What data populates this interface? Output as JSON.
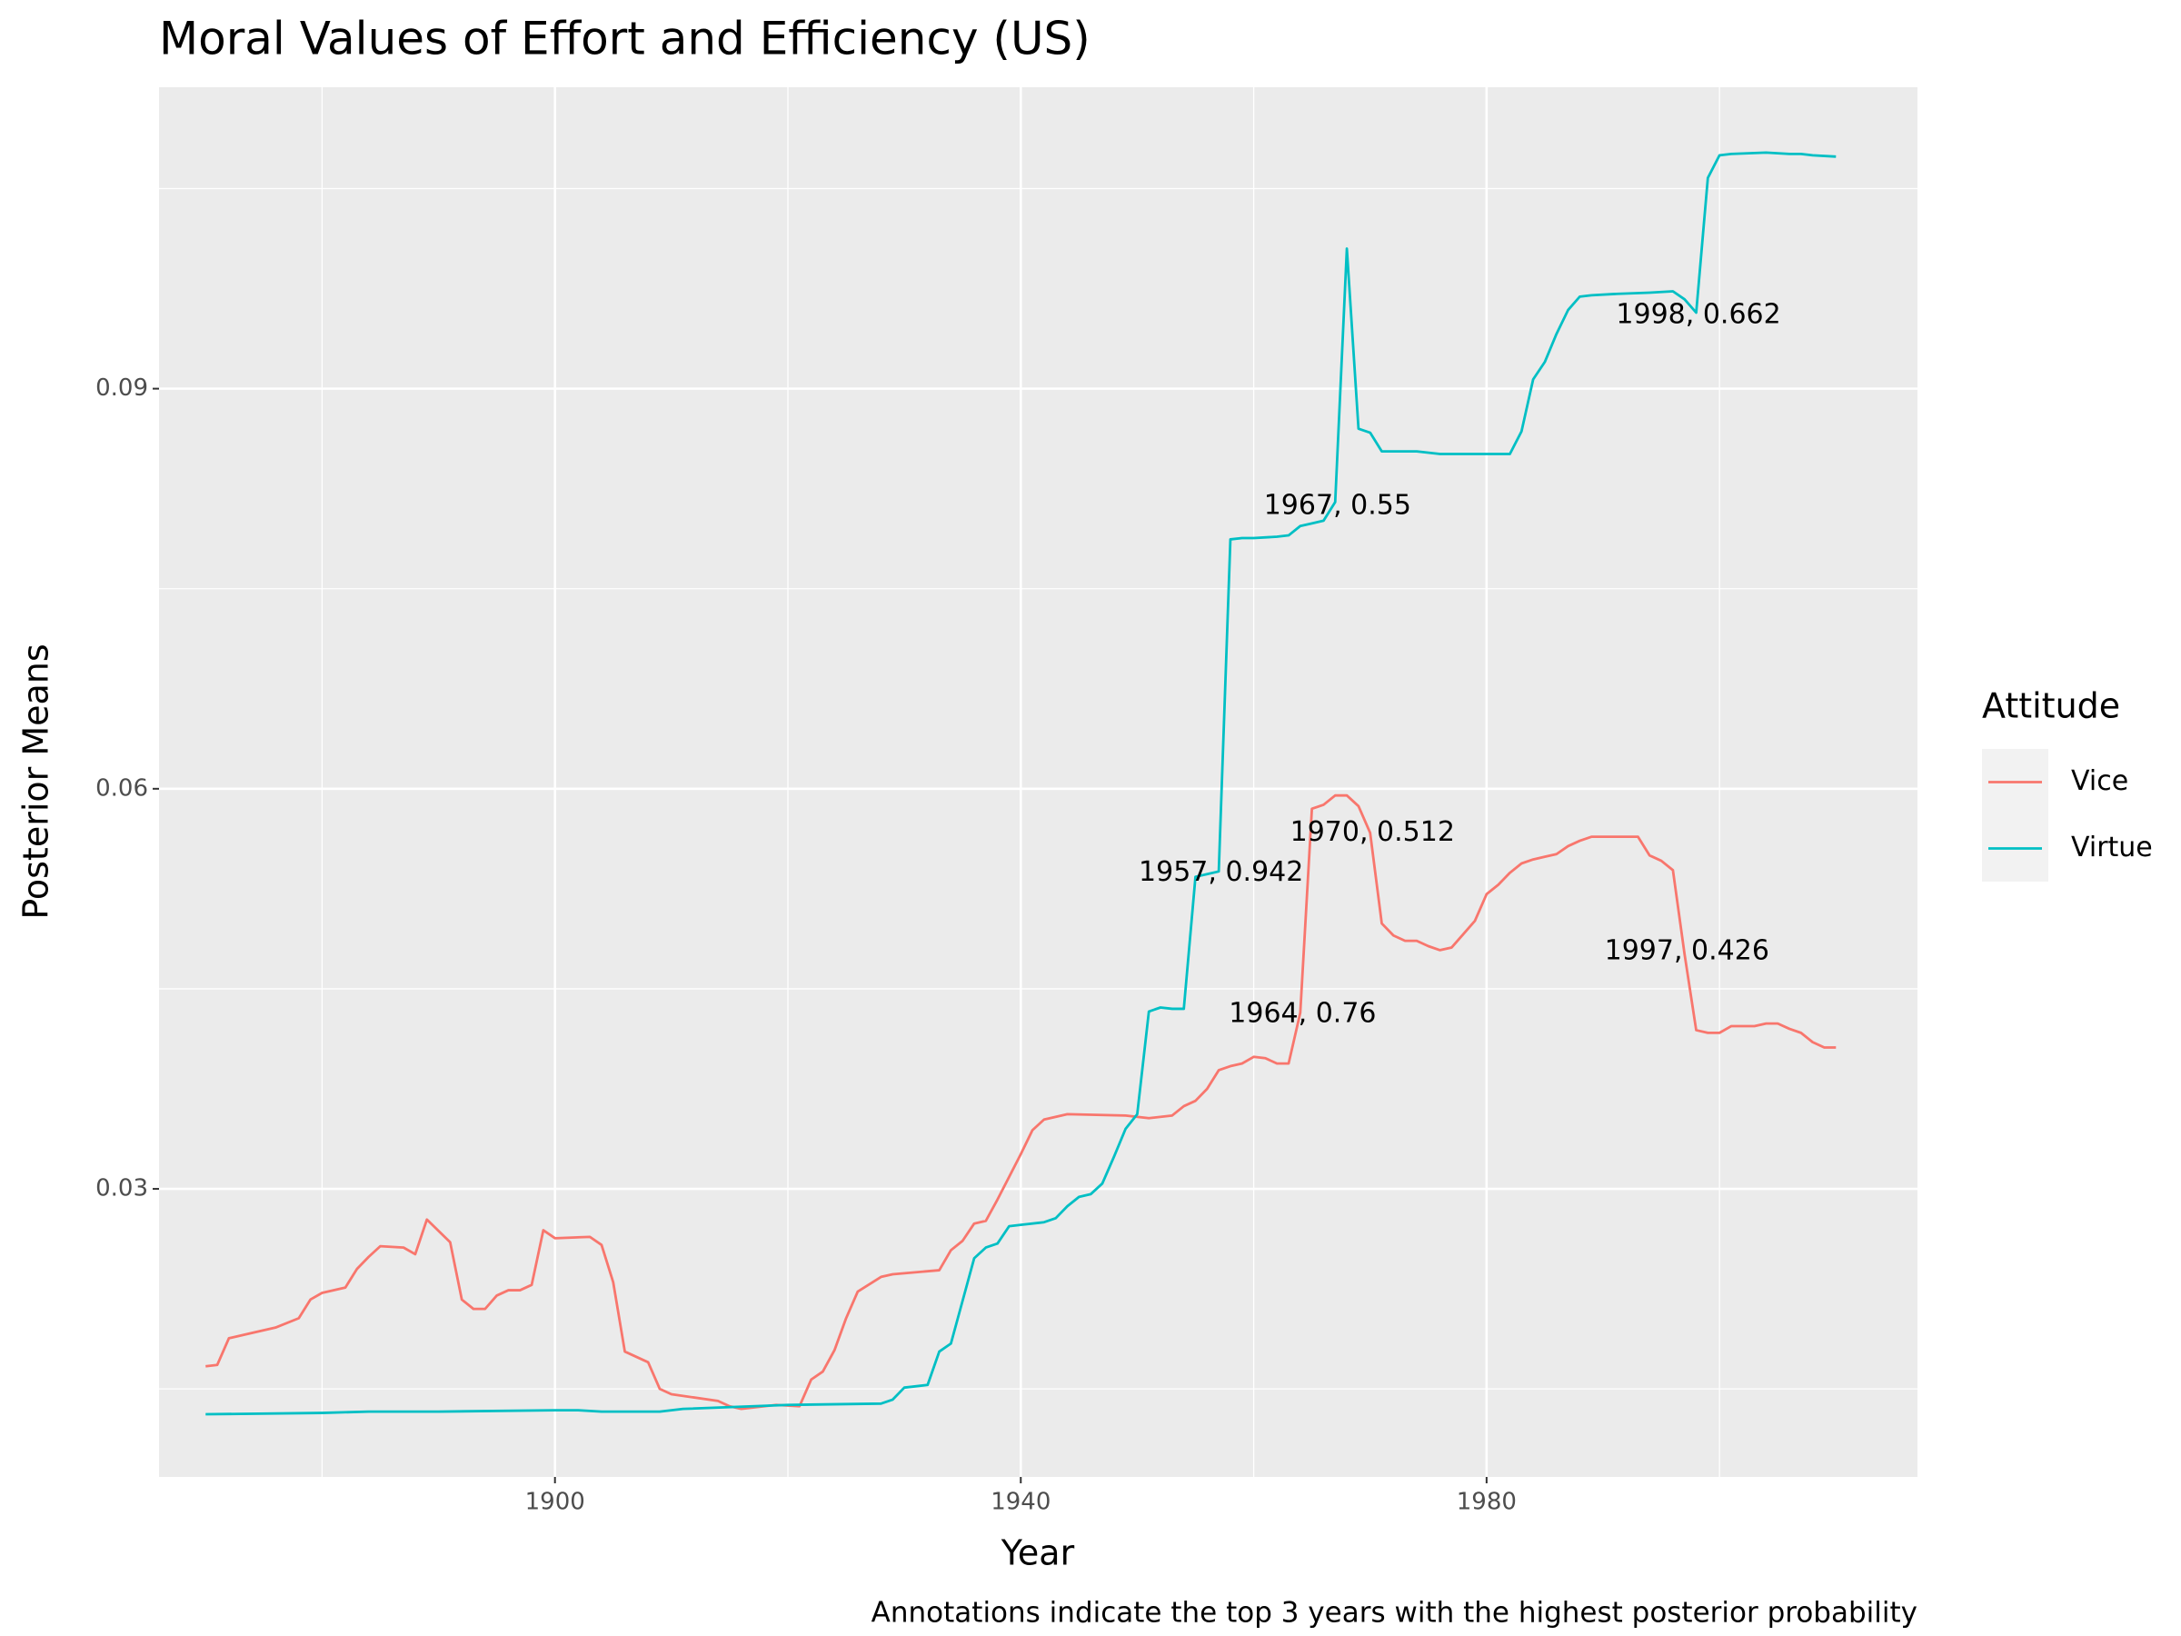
{
  "chart_data": {
    "type": "line",
    "title": "Moral Values of Effort and Efficiency (US)",
    "x_label": "Year",
    "y_label": "Posterior Means",
    "caption": "Annotations indicate the top 3 years with the highest posterior probability",
    "legend_title": "Attitude",
    "legend_position": "right",
    "grid": true,
    "xlim": [
      1866,
      2017
    ],
    "ylim": [
      0.0084,
      0.1126
    ],
    "xticks": [
      1900,
      1940,
      1980
    ],
    "yticks": [
      0.03,
      0.06,
      0.09
    ],
    "xminor": [
      1880,
      1920,
      1960,
      2000
    ],
    "yminor": [
      0.015,
      0.045,
      0.075,
      0.105
    ],
    "series": [
      {
        "name": "Vice",
        "color": "#f8766d",
        "x": [
          1870,
          1871,
          1872,
          1874,
          1876,
          1878,
          1879,
          1880,
          1882,
          1883,
          1884,
          1885,
          1887,
          1888,
          1889,
          1891,
          1892,
          1893,
          1894,
          1895,
          1896,
          1897,
          1898,
          1899,
          1900,
          1903,
          1904,
          1905,
          1906,
          1908,
          1909,
          1910,
          1914,
          1915,
          1916,
          1919,
          1921,
          1922,
          1923,
          1924,
          1925,
          1926,
          1928,
          1929,
          1933,
          1934,
          1935,
          1936,
          1937,
          1938,
          1939,
          1940,
          1941,
          1942,
          1944,
          1949,
          1951,
          1953,
          1954,
          1955,
          1956,
          1957,
          1958,
          1959,
          1960,
          1961,
          1962,
          1963,
          1964,
          1965,
          1966,
          1967,
          1968,
          1969,
          1970,
          1971,
          1972,
          1973,
          1974,
          1975,
          1976,
          1977,
          1978,
          1979,
          1980,
          1981,
          1982,
          1983,
          1984,
          1985,
          1986,
          1987,
          1988,
          1989,
          1990,
          1993,
          1994,
          1995,
          1996,
          1997,
          1998,
          1999,
          2000,
          2001,
          2003,
          2004,
          2005,
          2006,
          2007,
          2008,
          2009,
          2010
        ],
        "values": [
          0.0167,
          0.0168,
          0.0188,
          0.0192,
          0.0196,
          0.0203,
          0.0217,
          0.0222,
          0.0226,
          0.024,
          0.0249,
          0.0257,
          0.0256,
          0.0251,
          0.0277,
          0.026,
          0.0217,
          0.021,
          0.021,
          0.022,
          0.0224,
          0.0224,
          0.0228,
          0.0269,
          0.0263,
          0.0264,
          0.0258,
          0.023,
          0.0178,
          0.017,
          0.015,
          0.0146,
          0.0141,
          0.0137,
          0.0135,
          0.0138,
          0.0137,
          0.0157,
          0.0163,
          0.0179,
          0.0203,
          0.0223,
          0.0234,
          0.0236,
          0.0239,
          0.0254,
          0.0261,
          0.0274,
          0.0276,
          0.0292,
          0.0309,
          0.0326,
          0.0344,
          0.0352,
          0.0356,
          0.0355,
          0.0353,
          0.0355,
          0.0362,
          0.0366,
          0.0375,
          0.0389,
          0.0392,
          0.0394,
          0.0399,
          0.0398,
          0.0394,
          0.0394,
          0.0432,
          0.0585,
          0.0588,
          0.0595,
          0.0595,
          0.0587,
          0.0567,
          0.0499,
          0.049,
          0.0486,
          0.0486,
          0.0482,
          0.0479,
          0.0481,
          0.0491,
          0.0501,
          0.0521,
          0.0528,
          0.0537,
          0.0544,
          0.0547,
          0.0549,
          0.0551,
          0.0557,
          0.0561,
          0.0564,
          0.0564,
          0.0564,
          0.055,
          0.0546,
          0.0539,
          0.0476,
          0.0419,
          0.0417,
          0.0417,
          0.0422,
          0.0422,
          0.0424,
          0.0424,
          0.042,
          0.0417,
          0.041,
          0.0406,
          0.0406
        ]
      },
      {
        "name": "Virtue",
        "color": "#00bfc4",
        "x": [
          1870,
          1880,
          1884,
          1890,
          1900,
          1902,
          1904,
          1909,
          1911,
          1920,
          1928,
          1929,
          1930,
          1932,
          1933,
          1934,
          1935,
          1936,
          1937,
          1938,
          1939,
          1940,
          1942,
          1943,
          1944,
          1945,
          1946,
          1947,
          1948,
          1949,
          1950,
          1951,
          1952,
          1953,
          1954,
          1955,
          1956,
          1957,
          1958,
          1959,
          1960,
          1962,
          1963,
          1964,
          1965,
          1966,
          1967,
          1968,
          1969,
          1970,
          1971,
          1974,
          1976,
          1980,
          1982,
          1983,
          1984,
          1985,
          1986,
          1987,
          1988,
          1989,
          1991,
          1994,
          1996,
          1997,
          1998,
          1999,
          2000,
          2001,
          2004,
          2006,
          2007,
          2008,
          2010
        ],
        "values": [
          0.0131,
          0.0132,
          0.0133,
          0.0133,
          0.0134,
          0.0134,
          0.0133,
          0.0133,
          0.0135,
          0.0138,
          0.0139,
          0.0142,
          0.0151,
          0.0153,
          0.0178,
          0.0184,
          0.0216,
          0.0248,
          0.0256,
          0.0259,
          0.0272,
          0.0273,
          0.0275,
          0.0278,
          0.0287,
          0.0294,
          0.0296,
          0.0304,
          0.0324,
          0.0345,
          0.0356,
          0.0433,
          0.0436,
          0.0435,
          0.0435,
          0.0534,
          0.0536,
          0.0538,
          0.0787,
          0.0788,
          0.0788,
          0.0789,
          0.079,
          0.0797,
          0.0799,
          0.0801,
          0.0815,
          0.1005,
          0.087,
          0.0867,
          0.0853,
          0.0853,
          0.0851,
          0.0851,
          0.0851,
          0.0868,
          0.0907,
          0.092,
          0.0941,
          0.0959,
          0.0969,
          0.097,
          0.0971,
          0.0972,
          0.0973,
          0.0967,
          0.0957,
          0.1058,
          0.1075,
          0.1076,
          0.1077,
          0.1076,
          0.1076,
          0.1075,
          0.1074
        ]
      }
    ],
    "annotations": [
      {
        "text": "1998, 0.662",
        "x": 1998.2,
        "y": 0.0955
      },
      {
        "text": "1967, 0.55",
        "x": 1967.2,
        "y": 0.0812
      },
      {
        "text": "1970, 0.512",
        "x": 1970.2,
        "y": 0.0567
      },
      {
        "text": "1957, 0.942",
        "x": 1957.2,
        "y": 0.0537
      },
      {
        "text": "1964, 0.76",
        "x": 1964.2,
        "y": 0.0431
      },
      {
        "text": "1997, 0.426",
        "x": 1997.2,
        "y": 0.0478
      }
    ]
  }
}
